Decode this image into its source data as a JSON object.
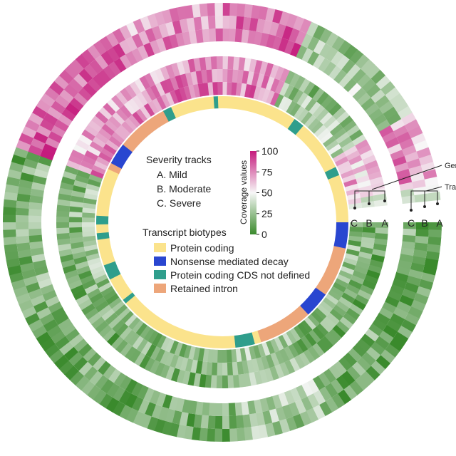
{
  "chart_data": {
    "type": "heatmap",
    "layout": "circular",
    "title": "",
    "rings": [
      {
        "name": "Gene coverage",
        "tracks": [
          "A",
          "B",
          "C"
        ]
      },
      {
        "name": "Transcript coverage",
        "tracks": [
          "A",
          "B",
          "C"
        ]
      }
    ],
    "callout_labels": {
      "outer": "Gen",
      "inner": "Tra"
    },
    "severity_tracks": {
      "title": "Severity tracks",
      "items": [
        "A. Mild",
        "B. Moderate",
        "C. Severe"
      ],
      "axis_letters": [
        "C",
        "B",
        "A"
      ]
    },
    "colorbar": {
      "label": "Coverage values",
      "ticks": [
        "0",
        "25",
        "50",
        "75",
        "100"
      ],
      "range": [
        0,
        100
      ],
      "colors": [
        "#3a8a2c",
        "#f7f7f7",
        "#c51b7d"
      ]
    },
    "biotypes": {
      "title": "Transcript biotypes",
      "items": [
        {
          "label": "Protein coding",
          "color": "#fbe38c"
        },
        {
          "label": "Nonsense mediated decay",
          "color": "#2946d0"
        },
        {
          "label": "Protein coding CDS not defined",
          "color": "#2f9e8c"
        },
        {
          "label": "Retained intron",
          "color": "#eda67a"
        }
      ]
    },
    "biotype_segments": [
      {
        "biotype": 0,
        "start": 0,
        "end": 35
      },
      {
        "biotype": 2,
        "start": 35,
        "end": 40
      },
      {
        "biotype": 0,
        "start": 40,
        "end": 64
      },
      {
        "biotype": 2,
        "start": 64,
        "end": 68
      },
      {
        "biotype": 0,
        "start": 68,
        "end": 90
      },
      {
        "biotype": 1,
        "start": 90,
        "end": 102
      },
      {
        "biotype": 3,
        "start": 102,
        "end": 125
      },
      {
        "biotype": 1,
        "start": 125,
        "end": 137
      },
      {
        "biotype": 3,
        "start": 137,
        "end": 162
      },
      {
        "biotype": 0,
        "start": 162,
        "end": 165
      },
      {
        "biotype": 2,
        "start": 165,
        "end": 174
      },
      {
        "biotype": 0,
        "start": 174,
        "end": 230
      },
      {
        "biotype": 2,
        "start": 230,
        "end": 232
      },
      {
        "biotype": 0,
        "start": 232,
        "end": 243
      },
      {
        "biotype": 2,
        "start": 243,
        "end": 250
      },
      {
        "biotype": 0,
        "start": 250,
        "end": 262
      },
      {
        "biotype": 2,
        "start": 262,
        "end": 265
      },
      {
        "biotype": 0,
        "start": 265,
        "end": 269
      },
      {
        "biotype": 2,
        "start": 269,
        "end": 273
      },
      {
        "biotype": 0,
        "start": 273,
        "end": 295
      },
      {
        "biotype": 3,
        "start": 295,
        "end": 298
      },
      {
        "biotype": 1,
        "start": 298,
        "end": 308
      },
      {
        "biotype": 3,
        "start": 308,
        "end": 332
      },
      {
        "biotype": 2,
        "start": 332,
        "end": 336
      },
      {
        "biotype": 0,
        "start": 336,
        "end": 356
      },
      {
        "biotype": 2,
        "start": 356,
        "end": 358
      },
      {
        "biotype": 0,
        "start": 358,
        "end": 360
      }
    ],
    "coverage_profile_by_sector": [
      {
        "start": 0,
        "end": 25,
        "outer_mean": 80,
        "inner_mean": 72
      },
      {
        "start": 25,
        "end": 60,
        "outer_mean": 30,
        "inner_mean": 28
      },
      {
        "start": 60,
        "end": 80,
        "outer_mean": 68,
        "inner_mean": 62
      },
      {
        "start": 80,
        "end": 90,
        "outer_mean": 45,
        "inner_mean": 40
      },
      {
        "start": 90,
        "end": 150,
        "outer_mean": 15,
        "inner_mean": 18
      },
      {
        "start": 150,
        "end": 175,
        "outer_mean": 30,
        "inner_mean": 28
      },
      {
        "start": 175,
        "end": 240,
        "outer_mean": 15,
        "inner_mean": 18
      },
      {
        "start": 240,
        "end": 290,
        "outer_mean": 18,
        "inner_mean": 22
      },
      {
        "start": 290,
        "end": 330,
        "outer_mean": 82,
        "inner_mean": 70
      },
      {
        "start": 330,
        "end": 360,
        "outer_mean": 72,
        "inner_mean": 74
      }
    ]
  }
}
